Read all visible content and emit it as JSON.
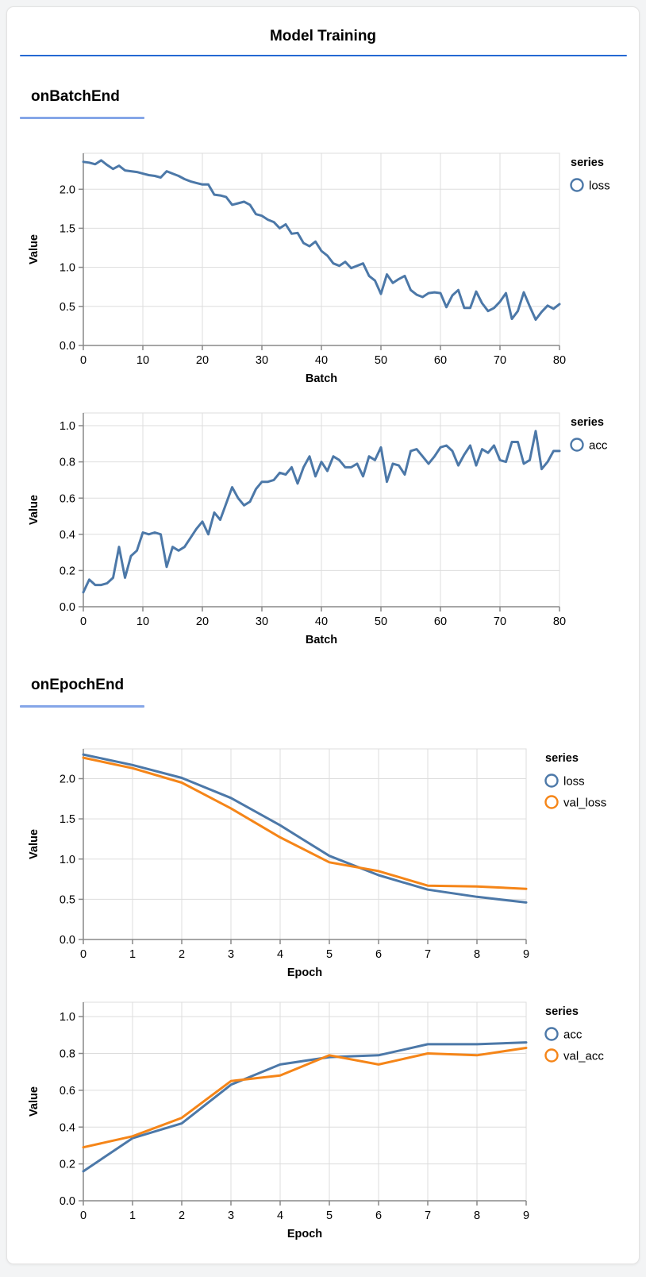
{
  "page_title": "Model Training",
  "sections": [
    {
      "heading": "onBatchEnd"
    },
    {
      "heading": "onEpochEnd"
    }
  ],
  "colors": {
    "title_rule": "#2569d3",
    "section_rule": "#85a6e8",
    "series_blue": "#4C78A8",
    "series_orange": "#F58518",
    "grid": "#dddddd",
    "axis_domain": "#888888",
    "label_text": "#000000"
  },
  "chart_data": [
    {
      "type": "line",
      "section": "onBatchEnd",
      "xlabel": "Batch",
      "ylabel": "Value",
      "legend_title": "series",
      "legend_position": "right",
      "grid": true,
      "xlim": [
        0,
        80
      ],
      "ylim": [
        0,
        2.46
      ],
      "x_ticks": [
        0,
        10,
        20,
        30,
        40,
        50,
        60,
        70,
        80
      ],
      "y_ticks": [
        0.0,
        0.5,
        1.0,
        1.5,
        2.0
      ],
      "series": [
        {
          "name": "loss",
          "color": "#4C78A8",
          "values": [
            2.35,
            2.34,
            2.32,
            2.37,
            2.31,
            2.26,
            2.3,
            2.24,
            2.23,
            2.22,
            2.2,
            2.18,
            2.17,
            2.15,
            2.23,
            2.2,
            2.17,
            2.13,
            2.1,
            2.08,
            2.06,
            2.06,
            1.93,
            1.92,
            1.9,
            1.8,
            1.82,
            1.84,
            1.8,
            1.68,
            1.66,
            1.61,
            1.58,
            1.5,
            1.55,
            1.43,
            1.44,
            1.31,
            1.27,
            1.33,
            1.21,
            1.15,
            1.05,
            1.02,
            1.07,
            0.99,
            1.02,
            1.05,
            0.89,
            0.83,
            0.66,
            0.91,
            0.8,
            0.85,
            0.89,
            0.71,
            0.65,
            0.62,
            0.67,
            0.68,
            0.67,
            0.49,
            0.64,
            0.71,
            0.48,
            0.48,
            0.69,
            0.54,
            0.44,
            0.48,
            0.56,
            0.67,
            0.34,
            0.44,
            0.68,
            0.5,
            0.33,
            0.43,
            0.51,
            0.47,
            0.53
          ]
        }
      ]
    },
    {
      "type": "line",
      "section": "onBatchEnd",
      "xlabel": "Batch",
      "ylabel": "Value",
      "legend_title": "series",
      "legend_position": "right",
      "grid": true,
      "xlim": [
        0,
        80
      ],
      "ylim": [
        0,
        1.07
      ],
      "x_ticks": [
        0,
        10,
        20,
        30,
        40,
        50,
        60,
        70,
        80
      ],
      "y_ticks": [
        0.0,
        0.2,
        0.4,
        0.6,
        0.8,
        1.0
      ],
      "series": [
        {
          "name": "acc",
          "color": "#4C78A8",
          "values": [
            0.08,
            0.15,
            0.12,
            0.12,
            0.13,
            0.16,
            0.33,
            0.16,
            0.28,
            0.31,
            0.41,
            0.4,
            0.41,
            0.4,
            0.22,
            0.33,
            0.31,
            0.33,
            0.38,
            0.43,
            0.47,
            0.4,
            0.52,
            0.48,
            0.57,
            0.66,
            0.6,
            0.56,
            0.58,
            0.65,
            0.69,
            0.69,
            0.7,
            0.74,
            0.73,
            0.77,
            0.68,
            0.77,
            0.83,
            0.72,
            0.8,
            0.75,
            0.83,
            0.81,
            0.77,
            0.77,
            0.79,
            0.72,
            0.83,
            0.81,
            0.88,
            0.69,
            0.79,
            0.78,
            0.73,
            0.86,
            0.87,
            0.83,
            0.79,
            0.83,
            0.88,
            0.89,
            0.86,
            0.78,
            0.84,
            0.89,
            0.78,
            0.87,
            0.85,
            0.89,
            0.81,
            0.8,
            0.91,
            0.91,
            0.79,
            0.81,
            0.97,
            0.76,
            0.8,
            0.86,
            0.86
          ]
        }
      ]
    },
    {
      "type": "line",
      "section": "onEpochEnd",
      "xlabel": "Epoch",
      "ylabel": "Value",
      "legend_title": "series",
      "legend_position": "right",
      "grid": true,
      "xlim": [
        0,
        9
      ],
      "ylim": [
        0,
        2.37
      ],
      "x_ticks": [
        0,
        1,
        2,
        3,
        4,
        5,
        6,
        7,
        8,
        9
      ],
      "y_ticks": [
        0.0,
        0.5,
        1.0,
        1.5,
        2.0
      ],
      "series": [
        {
          "name": "loss",
          "color": "#4C78A8",
          "values": [
            2.3,
            2.17,
            2.01,
            1.76,
            1.42,
            1.04,
            0.8,
            0.62,
            0.53,
            0.46
          ]
        },
        {
          "name": "val_loss",
          "color": "#F58518",
          "values": [
            2.26,
            2.13,
            1.95,
            1.63,
            1.27,
            0.96,
            0.85,
            0.67,
            0.66,
            0.63
          ]
        }
      ]
    },
    {
      "type": "line",
      "section": "onEpochEnd",
      "xlabel": "Epoch",
      "ylabel": "Value",
      "legend_title": "series",
      "legend_position": "right",
      "grid": true,
      "xlim": [
        0,
        9
      ],
      "ylim": [
        0,
        1.078
      ],
      "x_ticks": [
        0,
        1,
        2,
        3,
        4,
        5,
        6,
        7,
        8,
        9
      ],
      "y_ticks": [
        0.0,
        0.2,
        0.4,
        0.6,
        0.8,
        1.0
      ],
      "series": [
        {
          "name": "acc",
          "color": "#4C78A8",
          "values": [
            0.16,
            0.34,
            0.42,
            0.63,
            0.74,
            0.78,
            0.79,
            0.85,
            0.85,
            0.86
          ]
        },
        {
          "name": "val_acc",
          "color": "#F58518",
          "values": [
            0.29,
            0.35,
            0.45,
            0.65,
            0.68,
            0.79,
            0.74,
            0.8,
            0.79,
            0.83
          ]
        }
      ]
    }
  ]
}
